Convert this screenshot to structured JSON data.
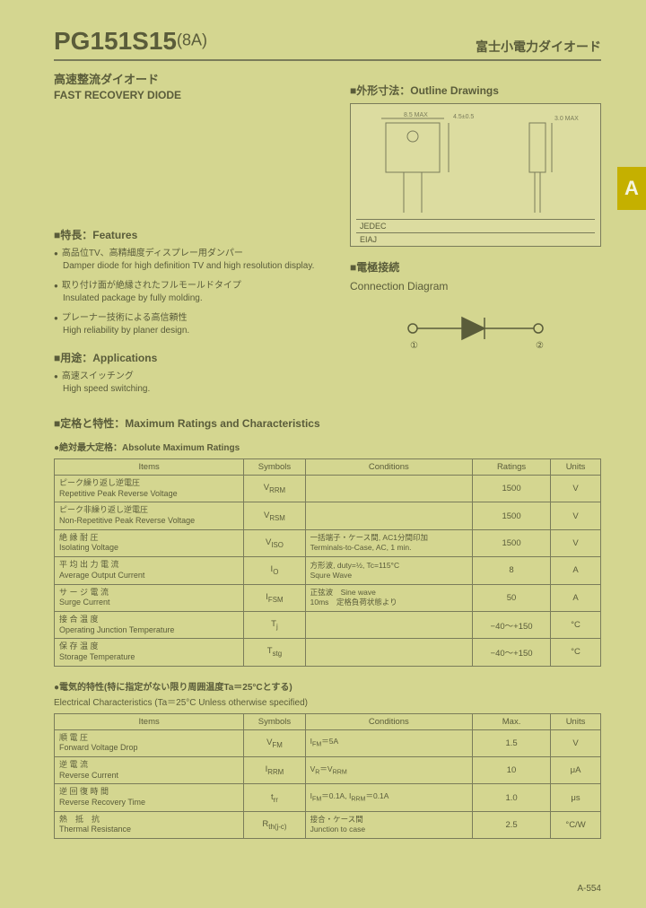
{
  "header": {
    "part_number": "PG151S15",
    "suffix": "(8A)",
    "brand_jp": "富士小電力ダイオード"
  },
  "subtitle": {
    "jp": "高速整流ダイオード",
    "en": "FAST RECOVERY DIODE"
  },
  "side_tab": "A",
  "outline": {
    "title": "■外形寸法：Outline Drawings",
    "jedec_label": "JEDEC",
    "eiaj_label": "EIAJ",
    "dims": {
      "w": "8.5 MAX",
      "h": "4.5±0.5",
      "lead": "3.0 MAX"
    }
  },
  "connection": {
    "title_jp": "■電極接続",
    "title_en": "Connection Diagram",
    "pin_left": "①",
    "pin_right": "②"
  },
  "features": {
    "title": "■特長：Features",
    "items": [
      {
        "jp": "高品位TV、高精細度ディスプレー用ダンパー",
        "en": "Damper diode for high definition TV and high resolution display."
      },
      {
        "jp": "取り付け面が絶縁されたフルモールドタイプ",
        "en": "Insulated package by fully molding."
      },
      {
        "jp": "プレーナー技術による高信頼性",
        "en": "High reliability by planer design."
      }
    ]
  },
  "applications": {
    "title": "■用途：Applications",
    "items": [
      {
        "jp": "高速スイッチング",
        "en": "High speed switching."
      }
    ]
  },
  "ratings": {
    "title": "■定格と特性：Maximum Ratings and Characteristics",
    "abs_title": "●絶対最大定格：Absolute Maximum Ratings",
    "headers": {
      "items": "Items",
      "symbols": "Symbols",
      "conditions": "Conditions",
      "ratings": "Ratings",
      "units": "Units"
    },
    "rows": [
      {
        "jp": "ピーク繰り返し逆電圧",
        "en": "Repetitive Peak Reverse Voltage",
        "sym": "V<sub>RRM</sub>",
        "cond": "",
        "rating": "1500",
        "unit": "V"
      },
      {
        "jp": "ピーク非繰り返し逆電圧",
        "en": "Non-Repetitive Peak Reverse Voltage",
        "sym": "V<sub>RSM</sub>",
        "cond": "",
        "rating": "1500",
        "unit": "V"
      },
      {
        "jp": "絶 縁 耐 圧",
        "en": "Isolating Voltage",
        "sym": "V<sub>ISO</sub>",
        "cond": "一括端子・ケース間, AC1分間印加<br>Terminals-to-Case, AC, 1 min.",
        "rating": "1500",
        "unit": "V"
      },
      {
        "jp": "平 均 出 力 電 流",
        "en": "Average Output Current",
        "sym": "I<sub>O</sub>",
        "cond": "方形波, duty=½, Tc=115°C<br>Squre Wave",
        "rating": "8",
        "unit": "A"
      },
      {
        "jp": "サ ー ジ 電 流",
        "en": "Surge Current",
        "sym": "I<sub>FSM</sub>",
        "cond": "正弦波　Sine wave<br>10ms　定格負荷状態より",
        "rating": "50",
        "unit": "A"
      },
      {
        "jp": "接 合 温 度",
        "en": "Operating Junction Temperature",
        "sym": "T<sub>j</sub>",
        "cond": "",
        "rating": "−40〜+150",
        "unit": "°C"
      },
      {
        "jp": "保 存 温 度",
        "en": "Storage Temperature",
        "sym": "T<sub>stg</sub>",
        "cond": "",
        "rating": "−40〜+150",
        "unit": "°C"
      }
    ]
  },
  "electrical": {
    "title_jp": "●電気的特性(特に指定がない限り周囲温度Ta＝25°Cとする)",
    "title_en": "Electrical Characteristics (Ta＝25°C Unless otherwise specified)",
    "headers": {
      "items": "Items",
      "symbols": "Symbols",
      "conditions": "Conditions",
      "max": "Max.",
      "units": "Units"
    },
    "rows": [
      {
        "jp": "順 電 圧",
        "en": "Forward Voltage Drop",
        "sym": "V<sub>FM</sub>",
        "cond": "I<sub>FM</sub>＝5A",
        "max": "1.5",
        "unit": "V"
      },
      {
        "jp": "逆 電 流",
        "en": "Reverse Current",
        "sym": "I<sub>RRM</sub>",
        "cond": "V<sub>R</sub>＝V<sub>RRM</sub>",
        "max": "10",
        "unit": "μA"
      },
      {
        "jp": "逆 回 復 時 間",
        "en": "Reverse Recovery Time",
        "sym": "t<sub>rr</sub>",
        "cond": "I<sub>FM</sub>＝0.1A, I<sub>RRM</sub>＝0.1A",
        "max": "1.0",
        "unit": "μs"
      },
      {
        "jp": "熱　抵　抗",
        "en": "Thermal Resistance",
        "sym": "R<sub>th(j-c)</sub>",
        "cond": "接合・ケース間<br>Junction to case",
        "max": "2.5",
        "unit": "°C/W"
      }
    ]
  },
  "page_number": "A-554"
}
